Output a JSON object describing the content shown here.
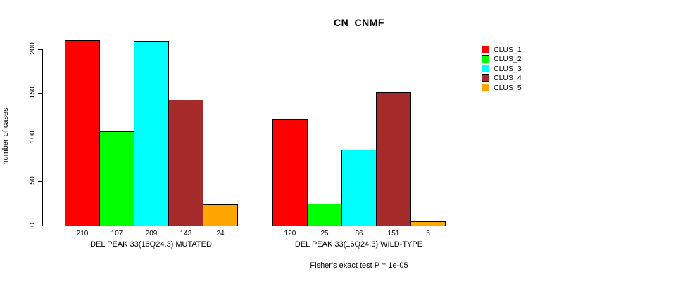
{
  "title": "CN_CNMF",
  "chart_data": {
    "type": "bar",
    "title": "CN_CNMF",
    "xlabel": "",
    "ylabel": "number of cases",
    "ylim": [
      0,
      210
    ],
    "yticks": [
      0,
      50,
      100,
      150,
      200
    ],
    "grid": false,
    "legend_position": "right-outside",
    "series": [
      {
        "name": "CLUS_1",
        "color": "#FF0000",
        "values": [
          210,
          120
        ]
      },
      {
        "name": "CLUS_2",
        "color": "#00FF00",
        "values": [
          107,
          25
        ]
      },
      {
        "name": "CLUS_3",
        "color": "#00FFFF",
        "values": [
          209,
          86
        ]
      },
      {
        "name": "CLUS_4",
        "color": "#A52A2A",
        "values": [
          143,
          151
        ]
      },
      {
        "name": "CLUS_5",
        "color": "#FFA500",
        "values": [
          24,
          5
        ]
      }
    ],
    "categories": [
      "DEL PEAK 33(16Q24.3) MUTATED",
      "DEL PEAK 33(16Q24.3) WILD-TYPE"
    ],
    "bar_value_labels": [
      [
        "210",
        "107",
        "209",
        "143",
        "24"
      ],
      [
        "120",
        "25",
        "86",
        "151",
        "5"
      ]
    ],
    "annotation": "Fisher's exact test P = 1e-05"
  }
}
